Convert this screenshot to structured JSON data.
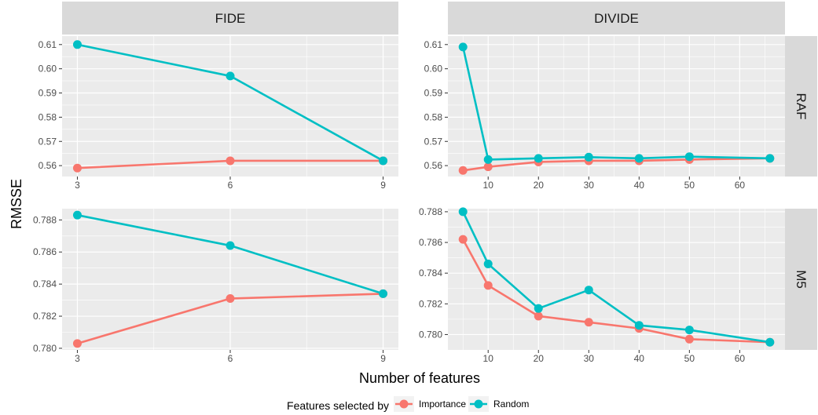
{
  "chart_data": {
    "type": "line",
    "xlabel": "Number of features",
    "ylabel": "RMSSE",
    "columns": [
      "FIDE",
      "DIVIDE"
    ],
    "rows": [
      "RAF",
      "M5"
    ],
    "legend": {
      "title": "Features selected by",
      "position": "bottom",
      "entries": [
        {
          "name": "Importance",
          "color": "#f8766d"
        },
        {
          "name": "Random",
          "color": "#00bfc4"
        }
      ]
    },
    "grid": true,
    "panels": [
      {
        "column": "FIDE",
        "row": "RAF",
        "xlim": [
          2.7,
          9.3
        ],
        "xticks": [
          3,
          6,
          9
        ],
        "ylim": [
          0.5555,
          0.6135
        ],
        "yticks": [
          0.56,
          0.57,
          0.58,
          0.59,
          0.6,
          0.61
        ],
        "ytick_labels": [
          "0.56",
          "0.57",
          "0.58",
          "0.59",
          "0.60",
          "0.61"
        ],
        "series": [
          {
            "name": "Importance",
            "x": [
              3,
              6,
              9
            ],
            "y": [
              0.559,
              0.562,
              0.562
            ]
          },
          {
            "name": "Random",
            "x": [
              3,
              6,
              9
            ],
            "y": [
              0.61,
              0.597,
              0.562
            ]
          }
        ]
      },
      {
        "column": "DIVIDE",
        "row": "RAF",
        "xlim": [
          2,
          69
        ],
        "xticks": [
          10,
          20,
          30,
          40,
          50,
          60
        ],
        "ylim": [
          0.5555,
          0.6135
        ],
        "yticks": [
          0.56,
          0.57,
          0.58,
          0.59,
          0.6,
          0.61
        ],
        "ytick_labels": [
          "0.56",
          "0.57",
          "0.58",
          "0.59",
          "0.60",
          "0.61"
        ],
        "series": [
          {
            "name": "Importance",
            "x": [
              5,
              10,
              20,
              30,
              40,
              50,
              66
            ],
            "y": [
              0.558,
              0.5595,
              0.5615,
              0.562,
              0.562,
              0.5625,
              0.563
            ]
          },
          {
            "name": "Random",
            "x": [
              5,
              10,
              20,
              30,
              40,
              50,
              66
            ],
            "y": [
              0.609,
              0.5625,
              0.563,
              0.5635,
              0.563,
              0.5637,
              0.563
            ]
          }
        ]
      },
      {
        "column": "FIDE",
        "row": "M5",
        "xlim": [
          2.7,
          9.3
        ],
        "xticks": [
          3,
          6,
          9
        ],
        "ylim": [
          0.7799,
          0.7887
        ],
        "yticks": [
          0.78,
          0.782,
          0.784,
          0.786,
          0.788
        ],
        "ytick_labels": [
          "0.780",
          "0.782",
          "0.784",
          "0.786",
          "0.788"
        ],
        "series": [
          {
            "name": "Importance",
            "x": [
              3,
              6,
              9
            ],
            "y": [
              0.7803,
              0.7831,
              0.7834
            ]
          },
          {
            "name": "Random",
            "x": [
              3,
              6,
              9
            ],
            "y": [
              0.7883,
              0.7864,
              0.7834
            ]
          }
        ]
      },
      {
        "column": "DIVIDE",
        "row": "M5",
        "xlim": [
          2,
          69
        ],
        "xticks": [
          10,
          20,
          30,
          40,
          50,
          60
        ],
        "ylim": [
          0.779,
          0.7882
        ],
        "yticks": [
          0.78,
          0.782,
          0.784,
          0.786,
          0.788
        ],
        "ytick_labels": [
          "0.780",
          "0.782",
          "0.784",
          "0.786",
          "0.788"
        ],
        "series": [
          {
            "name": "Importance",
            "x": [
              5,
              10,
              20,
              30,
              40,
              50,
              66
            ],
            "y": [
              0.7862,
              0.7832,
              0.7812,
              0.7808,
              0.7804,
              0.7797,
              0.7795
            ]
          },
          {
            "name": "Random",
            "x": [
              5,
              10,
              20,
              30,
              40,
              50,
              66
            ],
            "y": [
              0.788,
              0.7846,
              0.7817,
              0.7829,
              0.7806,
              0.7803,
              0.7795
            ]
          }
        ]
      }
    ]
  }
}
